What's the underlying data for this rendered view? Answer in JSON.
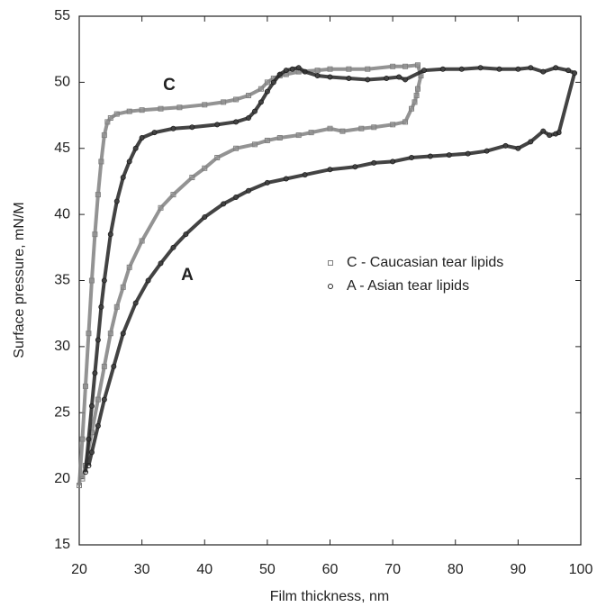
{
  "chart_data": {
    "type": "scatter",
    "xlabel": "Film thickness, nm",
    "ylabel": "Surface pressure, mN/M",
    "annotations": [
      "C",
      "A"
    ],
    "xlim": [
      20,
      100
    ],
    "xticks": [
      20,
      30,
      40,
      50,
      60,
      70,
      80,
      90,
      100
    ],
    "ylim": [
      15,
      55
    ],
    "yticks": [
      15,
      20,
      25,
      30,
      35,
      40,
      45,
      50,
      55
    ],
    "legend": "right",
    "series": [
      {
        "name": "C - Caucasian tear lipids",
        "color": "#808080",
        "marker": "square",
        "x": [
          20,
          20.5,
          21,
          21.5,
          22,
          22.5,
          23,
          23.5,
          24,
          24.5,
          25,
          26,
          28,
          30,
          33,
          36,
          40,
          43,
          45,
          47,
          49,
          50,
          51,
          52,
          53,
          55,
          58,
          60,
          63,
          66,
          70,
          72,
          74,
          74.5,
          74,
          73.8,
          73.5,
          73,
          72,
          70,
          67,
          65,
          62,
          60,
          57,
          55,
          52,
          50,
          48,
          45,
          42,
          40,
          38,
          35,
          33,
          30,
          28,
          27,
          26,
          25,
          24,
          23,
          22,
          21,
          20.5
        ],
        "values": [
          19.5,
          23,
          27,
          31,
          35,
          38.5,
          41.5,
          44,
          46,
          47,
          47.3,
          47.6,
          47.8,
          47.9,
          48,
          48.1,
          48.3,
          48.5,
          48.7,
          49,
          49.5,
          50,
          50.3,
          50.5,
          50.6,
          50.8,
          50.9,
          51,
          51,
          51,
          51.2,
          51.2,
          51.3,
          50.5,
          49.5,
          49,
          48.5,
          48,
          47,
          46.8,
          46.6,
          46.5,
          46.3,
          46.5,
          46.2,
          46,
          45.8,
          45.6,
          45.3,
          45,
          44.3,
          43.5,
          42.8,
          41.5,
          40.5,
          38,
          36,
          34.5,
          33,
          31,
          28.5,
          26,
          23.5,
          21,
          20
        ]
      },
      {
        "name": "A - Asian tear lipids",
        "color": "#222222",
        "marker": "circle",
        "x": [
          21,
          21.5,
          22,
          22.5,
          23,
          23.5,
          24,
          25,
          26,
          27,
          28,
          29,
          30,
          32,
          35,
          38,
          42,
          45,
          47,
          48,
          49,
          50,
          51,
          52,
          53,
          54,
          55,
          56,
          58,
          60,
          63,
          66,
          69,
          71,
          72,
          75,
          78,
          81,
          84,
          87,
          90,
          92,
          94,
          96,
          98,
          99,
          96.5,
          96,
          95,
          94,
          92,
          90,
          88,
          85,
          82,
          79,
          76,
          73,
          70,
          67,
          64,
          60,
          56,
          53,
          50,
          47,
          45,
          43,
          40,
          37,
          35,
          33,
          31,
          29,
          27,
          25.5,
          24,
          23,
          22,
          21.5
        ],
        "values": [
          20.5,
          23,
          25.5,
          28,
          30.5,
          33,
          35,
          38.5,
          41,
          42.8,
          44,
          45,
          45.8,
          46.2,
          46.5,
          46.6,
          46.8,
          47,
          47.3,
          47.8,
          48.5,
          49.3,
          50,
          50.6,
          50.9,
          51,
          51.1,
          50.8,
          50.5,
          50.4,
          50.3,
          50.2,
          50.3,
          50.4,
          50.2,
          50.9,
          51,
          51,
          51.1,
          51,
          51,
          51.1,
          50.8,
          51.1,
          50.9,
          50.7,
          46.2,
          46.1,
          46,
          46.3,
          45.5,
          45,
          45.2,
          44.8,
          44.6,
          44.5,
          44.4,
          44.3,
          44,
          43.9,
          43.6,
          43.4,
          43,
          42.7,
          42.4,
          41.8,
          41.3,
          40.8,
          39.8,
          38.5,
          37.5,
          36.3,
          35,
          33.3,
          31,
          28.5,
          26,
          24,
          22,
          21
        ]
      }
    ]
  }
}
